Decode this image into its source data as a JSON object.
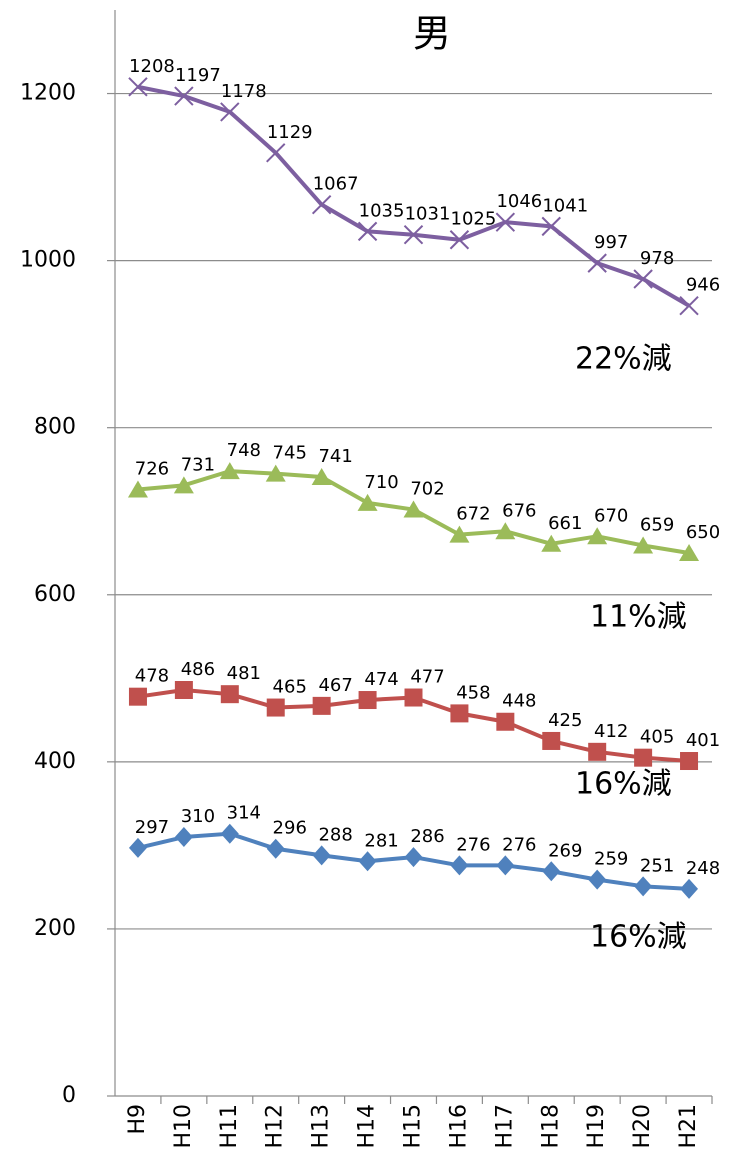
{
  "chart_data": {
    "type": "line",
    "title": "男",
    "categories": [
      "H9",
      "H10",
      "H11",
      "H12",
      "H13",
      "H14",
      "H15",
      "H16",
      "H17",
      "H18",
      "H19",
      "H20",
      "H21"
    ],
    "ylim": [
      0,
      1300
    ],
    "yticks": [
      0,
      200,
      400,
      600,
      800,
      1000,
      1200
    ],
    "grid": true,
    "series": [
      {
        "color": "#7d5fa0",
        "marker": "x",
        "values": [
          1208,
          1197,
          1178,
          1129,
          1067,
          1035,
          1031,
          1025,
          1046,
          1041,
          997,
          978,
          946
        ]
      },
      {
        "color": "#9bbb59",
        "marker": "triangle",
        "values": [
          726,
          731,
          748,
          745,
          741,
          710,
          702,
          672,
          676,
          661,
          670,
          659,
          650
        ]
      },
      {
        "color": "#c0504d",
        "marker": "square",
        "values": [
          478,
          486,
          481,
          465,
          467,
          474,
          477,
          458,
          448,
          425,
          412,
          405,
          401
        ]
      },
      {
        "color": "#4f81bd",
        "marker": "diamond",
        "values": [
          297,
          310,
          314,
          296,
          288,
          281,
          286,
          276,
          276,
          269,
          259,
          251,
          248
        ]
      }
    ],
    "annotations": [
      "22%減",
      "11%減",
      "16%減",
      "16%減"
    ]
  }
}
